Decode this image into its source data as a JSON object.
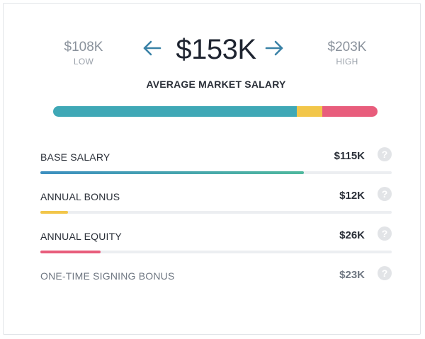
{
  "summary": {
    "low_value": "$108K",
    "low_label": "LOW",
    "high_value": "$203K",
    "high_label": "HIGH",
    "average_value": "$153K",
    "average_label": "AVERAGE MARKET SALARY"
  },
  "icons": {
    "prev": "arrow-left-icon",
    "next": "arrow-right-icon",
    "help": "question-mark-icon"
  },
  "stacked_bar": [
    {
      "name": "base",
      "fraction": 0.751,
      "color": "#3fa8b6"
    },
    {
      "name": "bonus",
      "fraction": 0.078,
      "color": "#f2c64a"
    },
    {
      "name": "equity",
      "fraction": 0.171,
      "color": "#e85d7c"
    }
  ],
  "components": [
    {
      "label": "BASE SALARY",
      "value": "$115K",
      "fill_fraction": 0.751,
      "color": "#3fa8b6",
      "muted": false
    },
    {
      "label": "ANNUAL BONUS",
      "value": "$12K",
      "fill_fraction": 0.078,
      "color": "#f2c64a",
      "muted": false
    },
    {
      "label": "ANNUAL EQUITY",
      "value": "$26K",
      "fill_fraction": 0.171,
      "color": "#e85d7c",
      "muted": false
    },
    {
      "label": "ONE-TIME SIGNING BONUS",
      "value": "$23K",
      "fill_fraction": 0,
      "color": "#cccccc",
      "muted": true
    }
  ],
  "help_glyph": "?"
}
